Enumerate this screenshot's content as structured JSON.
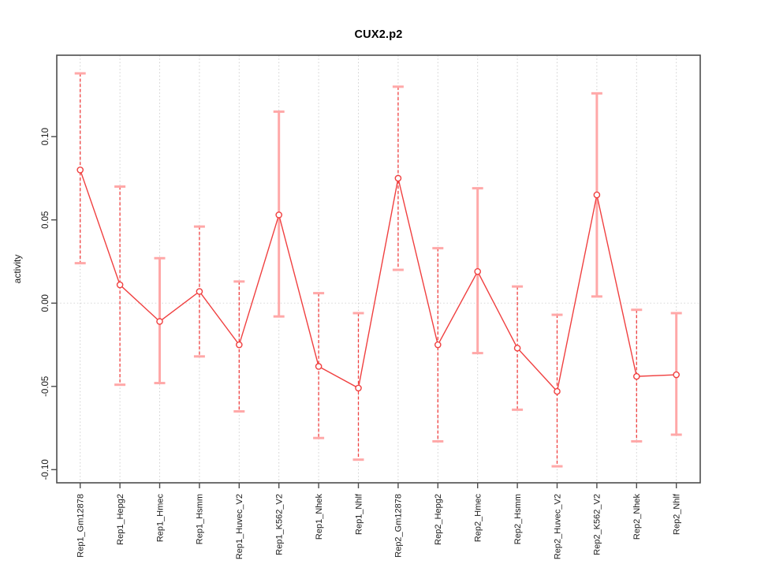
{
  "chart_data": {
    "type": "line",
    "subtype": "points-with-error-bars",
    "title": "CUX2.p2",
    "xlabel": "",
    "ylabel": "activity",
    "ylim": [
      -0.1079,
      0.1489
    ],
    "yticks": [
      -0.1,
      -0.05,
      0.0,
      0.05,
      0.1
    ],
    "ytick_labels": [
      "-0.10",
      "-0.05",
      "0.00",
      "0.05",
      "0.10"
    ],
    "grid": "vertical dotted line at every category; dotted horizontal line at y=0 only",
    "legend": "none",
    "categories": [
      "Rep1_Gm12878",
      "Rep1_Hepg2",
      "Rep1_Hmec",
      "Rep1_Hsmm",
      "Rep1_Huvec_V2",
      "Rep1_K562_V2",
      "Rep1_Nhek",
      "Rep1_Nhlf",
      "Rep2_Gm12878",
      "Rep2_Hepg2",
      "Rep2_Hmec",
      "Rep2_Hsmm",
      "Rep2_Huvec_V2",
      "Rep2_K562_V2",
      "Rep2_Nhek",
      "Rep2_Nhlf"
    ],
    "series": [
      {
        "name": "activity",
        "values": [
          0.08,
          0.011,
          -0.011,
          0.007,
          -0.025,
          0.053,
          -0.038,
          -0.051,
          0.075,
          -0.025,
          0.019,
          -0.027,
          -0.053,
          0.065,
          -0.044,
          -0.043
        ],
        "lower": [
          0.024,
          -0.049,
          -0.048,
          -0.032,
          -0.065,
          -0.008,
          -0.081,
          -0.094,
          0.02,
          -0.083,
          -0.03,
          -0.064,
          -0.098,
          0.004,
          -0.083,
          -0.079
        ],
        "upper": [
          0.138,
          0.07,
          0.027,
          0.046,
          0.013,
          0.115,
          0.006,
          -0.006,
          0.13,
          0.033,
          0.069,
          0.01,
          -0.007,
          0.126,
          -0.004,
          -0.006
        ],
        "error_bar_styles": [
          "dashed",
          "dashed",
          "solid",
          "dashed",
          "dashed",
          "solid",
          "dashed",
          "dashed",
          "dashed",
          "dashed",
          "solid",
          "dashed",
          "dashed",
          "solid",
          "dashed",
          "solid"
        ]
      }
    ],
    "colors": {
      "series_line": "#f04040",
      "error_bar": "#ffa8a8",
      "grid": "#cfcfcf",
      "frame": "#4d4d4d",
      "tick_text": "#1a1a1a",
      "background": "#ffffff"
    },
    "marker": "open-circle"
  }
}
